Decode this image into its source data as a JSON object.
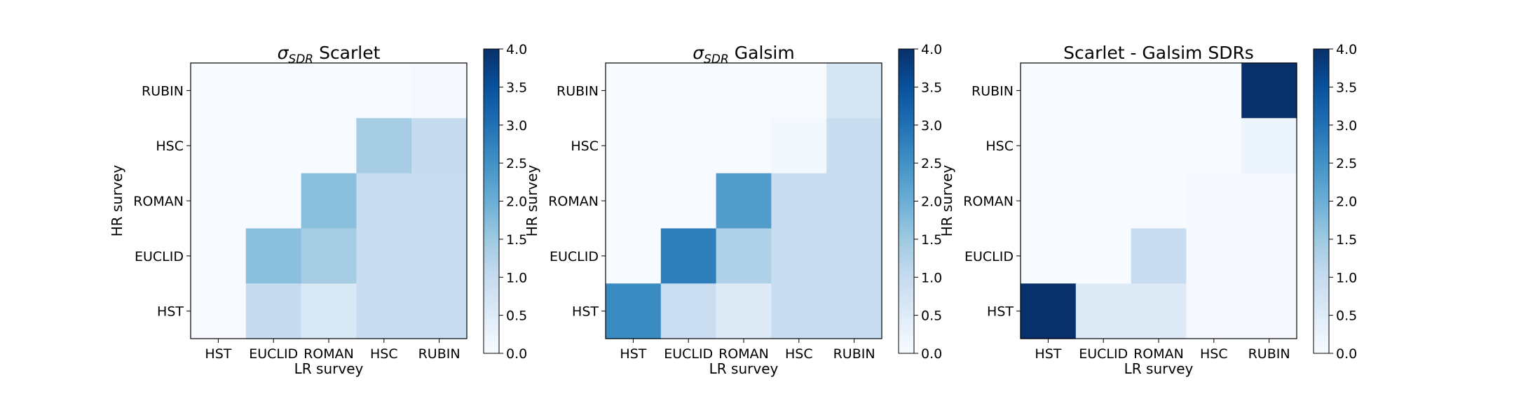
{
  "chart_data": [
    {
      "type": "heatmap",
      "title_parts": {
        "sym": "σ",
        "sub": "SDR",
        "rest": " Scarlet"
      },
      "xlabel": "LR survey",
      "ylabel": "HR survey",
      "x_categories": [
        "HST",
        "EUCLID",
        "ROMAN",
        "HSC",
        "RUBIN"
      ],
      "y_categories": [
        "HST",
        "EUCLID",
        "ROMAN",
        "HSC",
        "RUBIN"
      ],
      "colorbar": {
        "vmin": 0.0,
        "vmax": 4.0,
        "ticks": [
          "0.0",
          "0.5",
          "1.0",
          "1.5",
          "2.0",
          "2.5",
          "3.0",
          "3.5",
          "4.0"
        ],
        "colormap": "Blues"
      },
      "matrix_rows_top_to_bottom": [
        [
          0.0,
          0.0,
          0.0,
          0.0,
          0.05
        ],
        [
          0.0,
          0.0,
          0.0,
          1.4,
          1.0
        ],
        [
          0.0,
          0.0,
          1.7,
          0.95,
          0.95
        ],
        [
          0.0,
          1.7,
          1.4,
          0.95,
          0.95
        ],
        [
          0.0,
          1.0,
          0.6,
          0.95,
          0.95
        ]
      ]
    },
    {
      "type": "heatmap",
      "title_parts": {
        "sym": "σ",
        "sub": "SDR",
        "rest": " Galsim"
      },
      "xlabel": "LR survey",
      "ylabel": "HR survey",
      "x_categories": [
        "HST",
        "EUCLID",
        "ROMAN",
        "HSC",
        "RUBIN"
      ],
      "y_categories": [
        "HST",
        "EUCLID",
        "ROMAN",
        "HSC",
        "RUBIN"
      ],
      "colorbar": {
        "vmin": 0.0,
        "vmax": 4.0,
        "ticks": [
          "0.0",
          "0.5",
          "1.0",
          "1.5",
          "2.0",
          "2.5",
          "3.0",
          "3.5",
          "4.0"
        ],
        "colormap": "Blues"
      },
      "matrix_rows_top_to_bottom": [
        [
          0.0,
          0.0,
          0.0,
          0.0,
          0.7
        ],
        [
          0.0,
          0.0,
          0.0,
          0.1,
          0.95
        ],
        [
          0.0,
          0.0,
          2.3,
          0.95,
          0.95
        ],
        [
          0.0,
          2.8,
          1.3,
          0.95,
          0.95
        ],
        [
          2.6,
          0.9,
          0.5,
          0.95,
          0.95
        ]
      ]
    },
    {
      "type": "heatmap",
      "title_parts": {
        "sym": "",
        "sub": "",
        "rest": "Scarlet - Galsim SDRs"
      },
      "xlabel": "LR survey",
      "ylabel": "HR survey",
      "x_categories": [
        "HST",
        "EUCLID",
        "ROMAN",
        "HSC",
        "RUBIN"
      ],
      "y_categories": [
        "HST",
        "EUCLID",
        "ROMAN",
        "HSC",
        "RUBIN"
      ],
      "colorbar": {
        "vmin": 0.0,
        "vmax": 4.0,
        "ticks": [
          "0.0",
          "0.5",
          "1.0",
          "1.5",
          "2.0",
          "2.5",
          "3.0",
          "3.5",
          "4.0"
        ],
        "colormap": "Blues"
      },
      "matrix_rows_top_to_bottom": [
        [
          0.0,
          0.0,
          0.0,
          0.0,
          4.0
        ],
        [
          0.0,
          0.0,
          0.0,
          0.0,
          0.2
        ],
        [
          0.0,
          0.0,
          0.0,
          0.05,
          0.05
        ],
        [
          0.0,
          0.0,
          0.95,
          0.05,
          0.05
        ],
        [
          4.0,
          0.5,
          0.5,
          0.05,
          0.05
        ]
      ]
    }
  ]
}
